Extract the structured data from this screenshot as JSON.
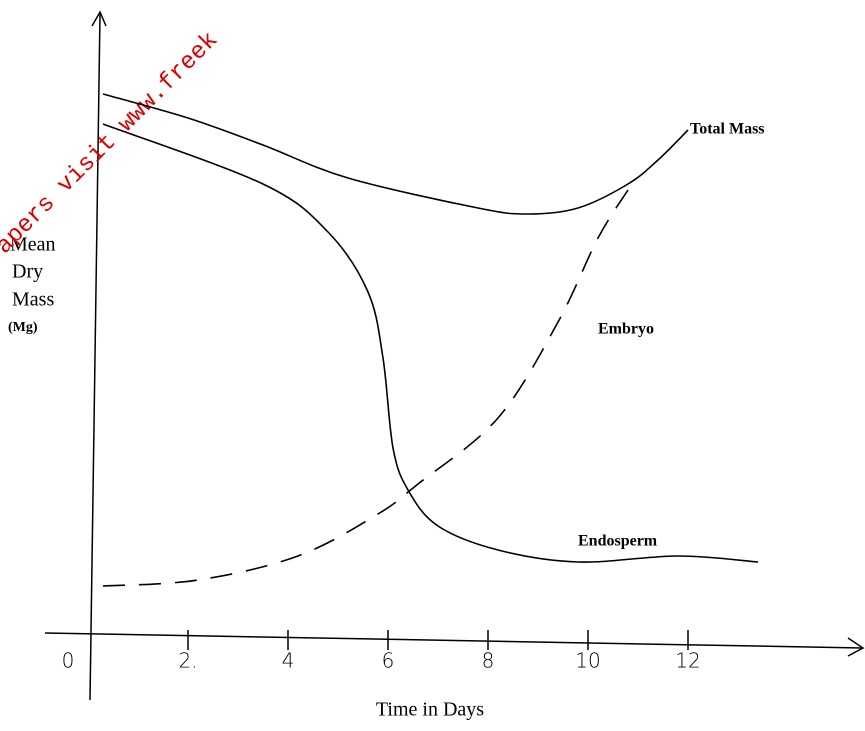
{
  "chart_data": {
    "type": "line",
    "xlabel": "Time in Days",
    "ylabel": [
      "Mean",
      "Dry",
      "Mass"
    ],
    "yunit": "(Mg)",
    "watermark": "apers visit www.freek",
    "xlim": [
      -0.86,
      15.54
    ],
    "ylim": [
      0,
      104
    ],
    "xticks": [
      0,
      {
        "value": 2,
        "label": "2."
      },
      4,
      6,
      8,
      10,
      12
    ],
    "series": [
      {
        "name": "Total Mass",
        "color": "#000000",
        "dashed": false,
        "x": [
          0.3,
          2,
          3.5,
          5.2,
          7.8,
          8.8,
          9.8,
          10.8,
          11.4,
          12
        ],
        "values": [
          91,
          87,
          82.5,
          77,
          72,
          71,
          72,
          76,
          80,
          85
        ]
      },
      {
        "name": "Embryo",
        "color": "#000000",
        "dashed": true,
        "x": [
          0.3,
          2.2,
          4.2,
          5.8,
          6.6,
          8.2,
          9.4,
          10.2,
          10.8
        ],
        "values": [
          9,
          10,
          14,
          21,
          26,
          37,
          53,
          67,
          75
        ]
      },
      {
        "name": "Endosperm",
        "color": "#000000",
        "dashed": false,
        "x": [
          0.3,
          3.5,
          4.8,
          5.6,
          5.9,
          6.1,
          6.4,
          7.0,
          8.2,
          9.8,
          11.8,
          13.4
        ],
        "values": [
          86,
          76,
          68,
          58,
          47,
          32,
          25,
          19,
          15,
          13,
          14,
          13
        ]
      }
    ]
  }
}
